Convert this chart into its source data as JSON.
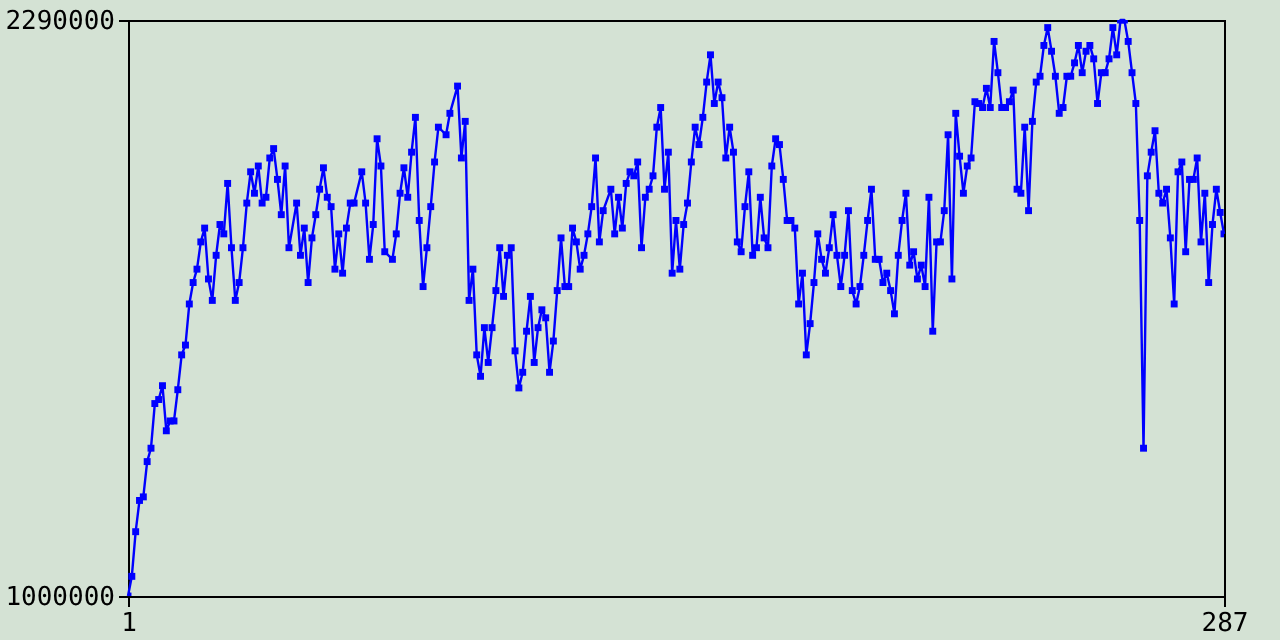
{
  "chart_data": {
    "type": "line",
    "marker": "square",
    "line_style": "solid",
    "grid": false,
    "xlim": [
      1,
      287
    ],
    "xticks": [
      1,
      287
    ],
    "ylim": [
      1000000,
      2290000
    ],
    "yticks": [
      1000000,
      2290000
    ],
    "x": [
      1,
      2,
      3,
      4,
      5,
      6,
      7,
      8,
      9,
      10,
      11,
      12,
      13,
      14,
      15,
      16,
      17,
      18,
      19,
      20,
      21,
      22,
      23,
      24,
      25,
      26,
      27,
      28,
      29,
      30,
      31,
      32,
      33,
      34,
      35,
      36,
      37,
      38,
      39,
      40,
      41,
      42,
      43,
      45,
      46,
      47,
      48,
      49,
      50,
      51,
      52,
      53,
      54,
      55,
      56,
      57,
      58,
      59,
      60,
      62,
      63,
      64,
      65,
      66,
      67,
      68,
      70,
      71,
      72,
      73,
      74,
      75,
      76,
      77,
      78,
      79,
      80,
      81,
      82,
      84,
      85,
      87,
      88,
      89,
      90,
      91,
      92,
      93,
      94,
      95,
      96,
      97,
      98,
      99,
      100,
      101,
      102,
      103,
      104,
      105,
      106,
      107,
      108,
      109,
      110,
      111,
      112,
      113,
      114,
      115,
      116,
      117,
      118,
      119,
      120,
      121,
      122,
      123,
      124,
      125,
      127,
      128,
      129,
      130,
      131,
      132,
      133,
      134,
      135,
      136,
      137,
      138,
      139,
      140,
      141,
      142,
      143,
      144,
      145,
      146,
      147,
      148,
      149,
      150,
      151,
      152,
      153,
      154,
      155,
      156,
      157,
      158,
      159,
      160,
      161,
      162,
      163,
      164,
      165,
      166,
      167,
      168,
      169,
      170,
      171,
      172,
      173,
      174,
      175,
      176,
      177,
      178,
      179,
      180,
      181,
      182,
      183,
      184,
      185,
      186,
      187,
      188,
      189,
      190,
      191,
      192,
      193,
      194,
      195,
      196,
      197,
      198,
      199,
      200,
      201,
      202,
      203,
      204,
      205,
      206,
      207,
      208,
      209,
      210,
      211,
      212,
      213,
      214,
      215,
      216,
      217,
      218,
      219,
      220,
      221,
      222,
      223,
      224,
      225,
      226,
      227,
      228,
      229,
      230,
      231,
      232,
      233,
      234,
      235,
      236,
      237,
      238,
      239,
      240,
      241,
      242,
      243,
      244,
      245,
      246,
      247,
      248,
      249,
      250,
      251,
      252,
      253,
      254,
      255,
      256,
      257,
      258,
      259,
      260,
      261,
      262,
      263,
      264,
      265,
      266,
      267,
      268,
      269,
      270,
      271,
      272,
      273,
      274,
      275,
      276,
      277,
      278,
      279,
      280,
      281,
      282,
      283,
      284,
      285,
      286,
      287
    ],
    "series": [
      {
        "color": "#0000ff",
        "values": [
          1000000,
          1044000,
          1144000,
          1214000,
          1222000,
          1301000,
          1331000,
          1431000,
          1440000,
          1471000,
          1370000,
          1392000,
          1392000,
          1462000,
          1540000,
          1562000,
          1654000,
          1702000,
          1732000,
          1793000,
          1824000,
          1710000,
          1662000,
          1763000,
          1832000,
          1811000,
          1924000,
          1780000,
          1662000,
          1702000,
          1780000,
          1880000,
          1950000,
          1902000,
          1963000,
          1880000,
          1893000,
          1981000,
          2002000,
          1933000,
          1854000,
          1963000,
          1780000,
          1880000,
          1763000,
          1824000,
          1702000,
          1802000,
          1854000,
          1911000,
          1959000,
          1893000,
          1872000,
          1732000,
          1811000,
          1723000,
          1824000,
          1880000,
          1880000,
          1950000,
          1880000,
          1754000,
          1832000,
          2024000,
          1963000,
          1771000,
          1754000,
          1811000,
          1902000,
          1959000,
          1893000,
          1994000,
          2072000,
          1841000,
          1693000,
          1780000,
          1872000,
          1972000,
          2050000,
          2033000,
          2081000,
          2142000,
          1981000,
          2063000,
          1662000,
          1732000,
          1540000,
          1492000,
          1601000,
          1523000,
          1601000,
          1684000,
          1780000,
          1671000,
          1763000,
          1780000,
          1549000,
          1466000,
          1501000,
          1593000,
          1671000,
          1523000,
          1601000,
          1641000,
          1623000,
          1501000,
          1571000,
          1684000,
          1802000,
          1693000,
          1693000,
          1824000,
          1793000,
          1732000,
          1763000,
          1811000,
          1872000,
          1981000,
          1793000,
          1863000,
          1911000,
          1811000,
          1893000,
          1824000,
          1924000,
          1950000,
          1941000,
          1972000,
          1780000,
          1893000,
          1911000,
          1941000,
          2050000,
          2094000,
          1911000,
          1994000,
          1723000,
          1841000,
          1732000,
          1832000,
          1880000,
          1972000,
          2050000,
          2011000,
          2072000,
          2151000,
          2212000,
          2103000,
          2151000,
          2116000,
          1981000,
          2050000,
          1994000,
          1793000,
          1771000,
          1872000,
          1950000,
          1763000,
          1780000,
          1893000,
          1802000,
          1780000,
          1963000,
          2024000,
          2011000,
          1933000,
          1841000,
          1841000,
          1824000,
          1654000,
          1723000,
          1540000,
          1610000,
          1702000,
          1811000,
          1754000,
          1723000,
          1780000,
          1854000,
          1763000,
          1693000,
          1763000,
          1863000,
          1684000,
          1654000,
          1693000,
          1763000,
          1841000,
          1911000,
          1754000,
          1754000,
          1702000,
          1723000,
          1684000,
          1632000,
          1763000,
          1841000,
          1902000,
          1741000,
          1771000,
          1710000,
          1741000,
          1693000,
          1893000,
          1593000,
          1793000,
          1793000,
          1863000,
          2033000,
          1710000,
          2081000,
          1985000,
          1902000,
          1963000,
          1981000,
          2107000,
          2103000,
          2094000,
          2137000,
          2094000,
          2242000,
          2172000,
          2094000,
          2094000,
          2107000,
          2133000,
          1911000,
          1902000,
          2050000,
          1863000,
          2063000,
          2151000,
          2164000,
          2233000,
          2273000,
          2220000,
          2164000,
          2081000,
          2094000,
          2164000,
          2164000,
          2194000,
          2233000,
          2172000,
          2220000,
          2233000,
          2203000,
          2103000,
          2172000,
          2172000,
          2203000,
          2273000,
          2212000,
          2290000,
          2290000,
          2242000,
          2172000,
          2103000,
          1841000,
          1331000,
          1941000,
          1994000,
          2042000,
          1902000,
          1880000,
          1911000,
          1802000,
          1654000,
          1950000,
          1972000,
          1771000,
          1933000,
          1933000,
          1981000,
          1793000,
          1902000,
          1702000,
          1832000,
          1911000,
          1859000,
          1811000
        ]
      }
    ]
  }
}
